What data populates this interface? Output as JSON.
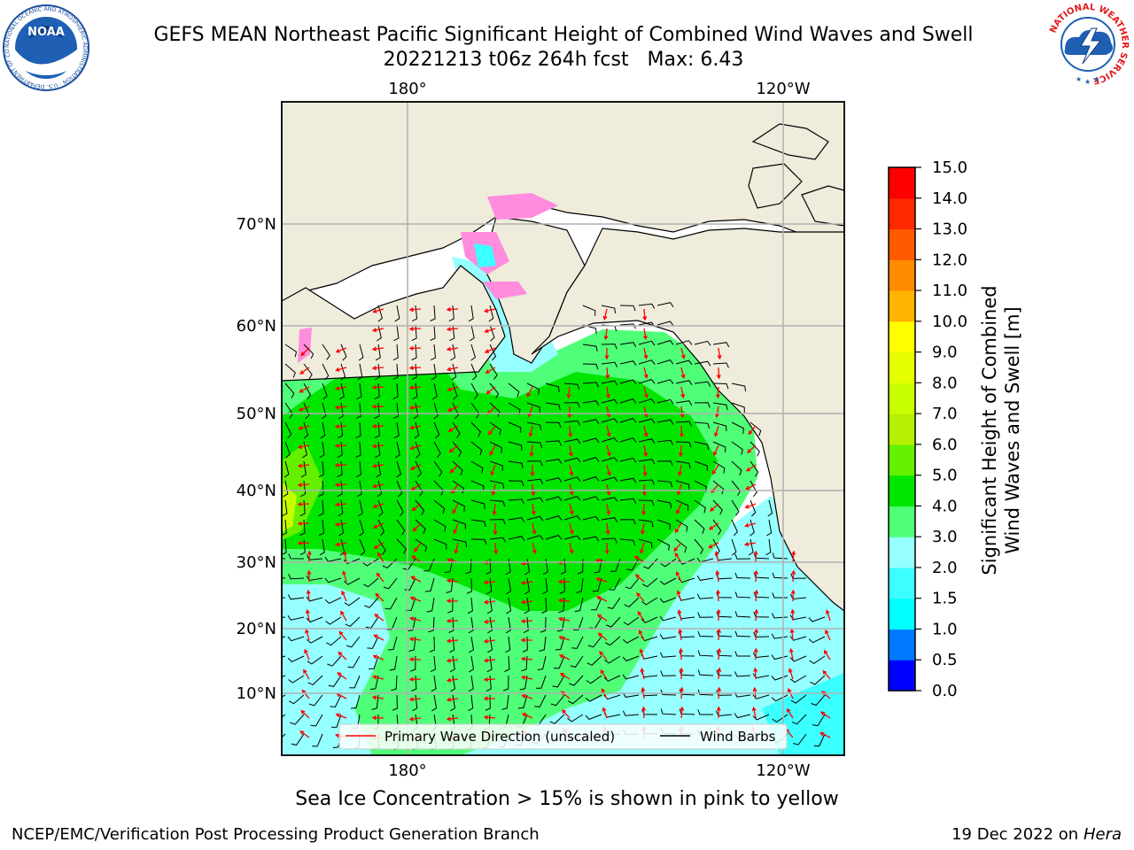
{
  "title_line1": "GEFS MEAN Northeast Pacific Significant Height of Combined Wind Waves and Swell",
  "title_line2": "20221213 t06z 264h fcst   Max: 6.43",
  "subtitle": "Sea Ice Concentration > 15% is shown in pink to yellow",
  "footer_left": "NCEP/EMC/Verification Post Processing Product Generation Branch",
  "footer_date": "19 Dec 2022 on",
  "footer_host": "Hera",
  "logos": {
    "noaa_text": "NOAA",
    "noaa_ring_text": "NATIONAL OCEANIC AND ATMOSPHERIC ADMINISTRATION · U.S. DEPARTMENT OF COMMERCE ·",
    "nws_ring_text": "NATIONAL WEATHER SERVICE"
  },
  "map": {
    "lon_labels_top": [
      "180°",
      "120°W"
    ],
    "lon_labels_bottom": [
      "180°",
      "120°W"
    ],
    "lat_labels": [
      "70°N",
      "60°N",
      "50°N",
      "40°N",
      "30°N",
      "20°N",
      "10°N"
    ],
    "land_color": "#efecdc",
    "grid_color": "#b0b0b0",
    "legend": {
      "wave_label": "Primary Wave Direction (unscaled)",
      "wave_color": "#ff0000",
      "barb_label": "Wind Barbs",
      "barb_color": "#000000"
    }
  },
  "colorbar": {
    "label_line1": "Significant Height of Combined",
    "label_line2": "Wind Waves and Swell [m]",
    "ticks": [
      "15.0",
      "14.0",
      "13.0",
      "12.0",
      "11.0",
      "10.0",
      "9.0",
      "8.0",
      "7.0",
      "6.0",
      "5.0",
      "4.0",
      "3.0",
      "2.0",
      "1.5",
      "1.0",
      "0.5",
      "0.0"
    ],
    "colors_bottom_to_top": [
      "#0000ff",
      "#0078ff",
      "#00ffff",
      "#3cffff",
      "#96ffff",
      "#50ff78",
      "#00e600",
      "#64f000",
      "#b4f000",
      "#c8ff00",
      "#e6ff00",
      "#ffff00",
      "#ffb400",
      "#ff8c00",
      "#ff5a00",
      "#ff2800",
      "#ff0000"
    ]
  }
}
